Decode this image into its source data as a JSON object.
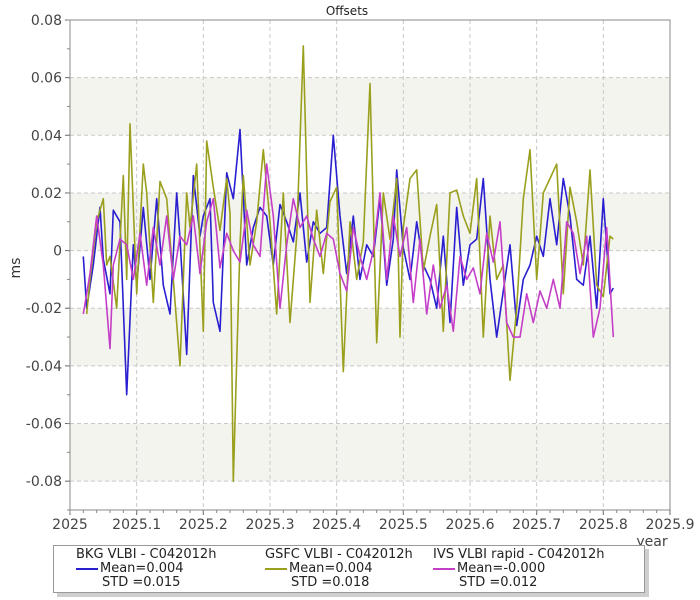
{
  "chart_data": {
    "type": "line",
    "title": "Offsets",
    "xlabel": "year",
    "ylabel": "ms",
    "xlim": [
      2025.0,
      2025.9
    ],
    "ylim": [
      -0.09,
      0.08
    ],
    "x_ticks": [
      "2025",
      "2025.1",
      "2025.2",
      "2025.3",
      "2025.4",
      "2025.5",
      "2025.6",
      "2025.7",
      "2025.8",
      "2025.9"
    ],
    "y_ticks": [
      "0.08",
      "0.06",
      "0.04",
      "0.02",
      "0",
      "-0.02",
      "-0.04",
      "-0.06",
      "-0.08"
    ],
    "grid": true,
    "legend_position": "bottom",
    "series": [
      {
        "name": "BKG VLBI - C042012h",
        "mean_label": "Mean=0.004",
        "std_label": "STD =0.015",
        "color": "#2a1fd0",
        "x": [
          2025.02,
          2025.025,
          2025.035,
          2025.045,
          2025.05,
          2025.06,
          2025.065,
          2025.075,
          2025.085,
          2025.095,
          2025.1,
          2025.11,
          2025.12,
          2025.13,
          2025.14,
          2025.15,
          2025.16,
          2025.165,
          2025.175,
          2025.185,
          2025.195,
          2025.2,
          2025.21,
          2025.215,
          2025.225,
          2025.235,
          2025.245,
          2025.255,
          2025.265,
          2025.275,
          2025.285,
          2025.295,
          2025.305,
          2025.315,
          2025.325,
          2025.335,
          2025.345,
          2025.355,
          2025.365,
          2025.375,
          2025.385,
          2025.395,
          2025.405,
          2025.415,
          2025.425,
          2025.435,
          2025.445,
          2025.455,
          2025.465,
          2025.475,
          2025.485,
          2025.49,
          2025.5,
          2025.51,
          2025.52,
          2025.53,
          2025.54,
          2025.55,
          2025.56,
          2025.57,
          2025.58,
          2025.59,
          2025.6,
          2025.61,
          2025.62,
          2025.63,
          2025.64,
          2025.65,
          2025.66,
          2025.67,
          2025.68,
          2025.69,
          2025.7,
          2025.71,
          2025.72,
          2025.73,
          2025.74,
          2025.75,
          2025.76,
          2025.77,
          2025.78,
          2025.79,
          2025.8,
          2025.81,
          2025.815
        ],
        "values": [
          -0.002,
          -0.02,
          -0.005,
          0.015,
          -0.003,
          -0.015,
          0.014,
          0.01,
          -0.05,
          0.002,
          -0.012,
          0.015,
          -0.01,
          0.018,
          -0.012,
          -0.022,
          0.02,
          0.004,
          -0.036,
          0.026,
          0.005,
          0.012,
          0.018,
          -0.018,
          -0.028,
          0.027,
          0.018,
          0.042,
          -0.005,
          0.008,
          0.015,
          0.012,
          -0.005,
          0.016,
          0.01,
          0.003,
          0.02,
          -0.004,
          0.01,
          0.006,
          0.008,
          0.04,
          0.012,
          -0.008,
          0.012,
          -0.01,
          0.002,
          -0.002,
          0.018,
          -0.012,
          0.004,
          0.028,
          0.001,
          -0.01,
          0.01,
          -0.005,
          -0.01,
          -0.02,
          0.005,
          -0.025,
          0.015,
          -0.012,
          0.002,
          0.004,
          0.025,
          -0.01,
          -0.03,
          -0.014,
          0.002,
          -0.026,
          -0.01,
          -0.005,
          0.005,
          -0.002,
          0.018,
          0.002,
          0.025,
          0.012,
          -0.01,
          -0.012,
          0.005,
          -0.02,
          0.018,
          -0.015,
          -0.013
        ]
      },
      {
        "name": "GSFC VLBI - C042012h",
        "mean_label": "Mean=0.004",
        "std_label": "STD =0.018",
        "color": "#9aa01e",
        "x": [
          2025.025,
          2025.03,
          2025.04,
          2025.05,
          2025.055,
          2025.06,
          2025.07,
          2025.08,
          2025.085,
          2025.09,
          2025.1,
          2025.11,
          2025.115,
          2025.125,
          2025.135,
          2025.145,
          2025.155,
          2025.165,
          2025.175,
          2025.18,
          2025.19,
          2025.2,
          2025.205,
          2025.215,
          2025.225,
          2025.235,
          2025.24,
          2025.245,
          2025.255,
          2025.26,
          2025.27,
          2025.28,
          2025.29,
          2025.3,
          2025.31,
          2025.32,
          2025.33,
          2025.34,
          2025.35,
          2025.36,
          2025.37,
          2025.38,
          2025.39,
          2025.4,
          2025.41,
          2025.42,
          2025.43,
          2025.44,
          2025.45,
          2025.46,
          2025.47,
          2025.48,
          2025.49,
          2025.495,
          2025.5,
          2025.51,
          2025.52,
          2025.53,
          2025.54,
          2025.55,
          2025.56,
          2025.57,
          2025.58,
          2025.59,
          2025.6,
          2025.61,
          2025.62,
          2025.63,
          2025.64,
          2025.65,
          2025.66,
          2025.67,
          2025.68,
          2025.69,
          2025.7,
          2025.71,
          2025.72,
          2025.73,
          2025.74,
          2025.75,
          2025.76,
          2025.77,
          2025.78,
          2025.79,
          2025.8,
          2025.81,
          2025.815
        ],
        "values": [
          -0.022,
          -0.01,
          0.01,
          0.018,
          -0.005,
          -0.002,
          -0.02,
          0.026,
          -0.01,
          0.044,
          -0.015,
          0.03,
          0.02,
          -0.018,
          0.024,
          0.018,
          -0.01,
          -0.04,
          0.02,
          0.008,
          0.03,
          -0.028,
          0.038,
          0.022,
          0.007,
          0.025,
          0.013,
          -0.08,
          0.002,
          0.026,
          -0.005,
          0.01,
          0.035,
          0.01,
          -0.022,
          0.02,
          -0.025,
          0.005,
          0.071,
          -0.018,
          0.014,
          -0.008,
          0.017,
          0.022,
          -0.042,
          0.01,
          -0.01,
          0.003,
          0.058,
          -0.032,
          0.02,
          0.004,
          0.025,
          -0.03,
          0.008,
          0.025,
          0.028,
          -0.007,
          0.005,
          0.016,
          -0.028,
          0.02,
          0.021,
          0.012,
          0.006,
          0.025,
          -0.03,
          0.012,
          -0.01,
          -0.005,
          -0.045,
          -0.02,
          0.018,
          0.035,
          -0.01,
          0.02,
          0.025,
          0.03,
          -0.015,
          0.022,
          0.01,
          -0.005,
          0.028,
          -0.012,
          -0.016,
          0.005,
          0.004
        ],
        "note_values": []
      },
      {
        "name": "IVS VLBI rapid - C042012h",
        "mean_label": "Mean=-0.000",
        "std_label": "STD =0.012",
        "color": "#c43fc8",
        "x": [
          2025.02,
          2025.03,
          2025.04,
          2025.05,
          2025.06,
          2025.065,
          2025.075,
          2025.085,
          2025.095,
          2025.105,
          2025.115,
          2025.125,
          2025.135,
          2025.145,
          2025.155,
          2025.165,
          2025.175,
          2025.185,
          2025.195,
          2025.205,
          2025.215,
          2025.225,
          2025.235,
          2025.245,
          2025.255,
          2025.265,
          2025.275,
          2025.285,
          2025.295,
          2025.305,
          2025.315,
          2025.325,
          2025.335,
          2025.345,
          2025.355,
          2025.365,
          2025.375,
          2025.385,
          2025.395,
          2025.405,
          2025.415,
          2025.425,
          2025.435,
          2025.445,
          2025.455,
          2025.465,
          2025.475,
          2025.485,
          2025.495,
          2025.505,
          2025.515,
          2025.525,
          2025.535,
          2025.545,
          2025.555,
          2025.565,
          2025.575,
          2025.585,
          2025.595,
          2025.605,
          2025.615,
          2025.625,
          2025.635,
          2025.645,
          2025.655,
          2025.665,
          2025.675,
          2025.685,
          2025.695,
          2025.705,
          2025.715,
          2025.725,
          2025.735,
          2025.745,
          2025.755,
          2025.765,
          2025.775,
          2025.785,
          2025.795,
          2025.805,
          2025.815
        ],
        "values": [
          -0.022,
          -0.008,
          0.012,
          -0.005,
          -0.034,
          -0.005,
          0.004,
          0.002,
          -0.01,
          0.006,
          -0.012,
          0.008,
          -0.005,
          0.012,
          -0.01,
          0.005,
          0.002,
          0.012,
          -0.008,
          0.01,
          0.018,
          -0.006,
          0.006,
          0.0,
          -0.004,
          0.014,
          0.002,
          -0.002,
          0.03,
          0.012,
          -0.02,
          0.002,
          0.018,
          0.008,
          0.012,
          0.004,
          -0.002,
          0.006,
          0.004,
          -0.008,
          -0.014,
          0.008,
          -0.002,
          -0.01,
          0.0,
          0.02,
          -0.01,
          0.012,
          -0.002,
          0.008,
          -0.018,
          0.004,
          -0.022,
          -0.005,
          -0.02,
          -0.012,
          -0.028,
          -0.002,
          -0.01,
          -0.006,
          -0.015,
          0.006,
          -0.004,
          0.01,
          -0.025,
          -0.03,
          -0.03,
          -0.015,
          -0.025,
          -0.014,
          -0.02,
          -0.01,
          -0.02,
          0.01,
          0.006,
          -0.008,
          0.005,
          -0.03,
          -0.02,
          0.008,
          -0.03
        ],
        "note_values": []
      }
    ]
  }
}
